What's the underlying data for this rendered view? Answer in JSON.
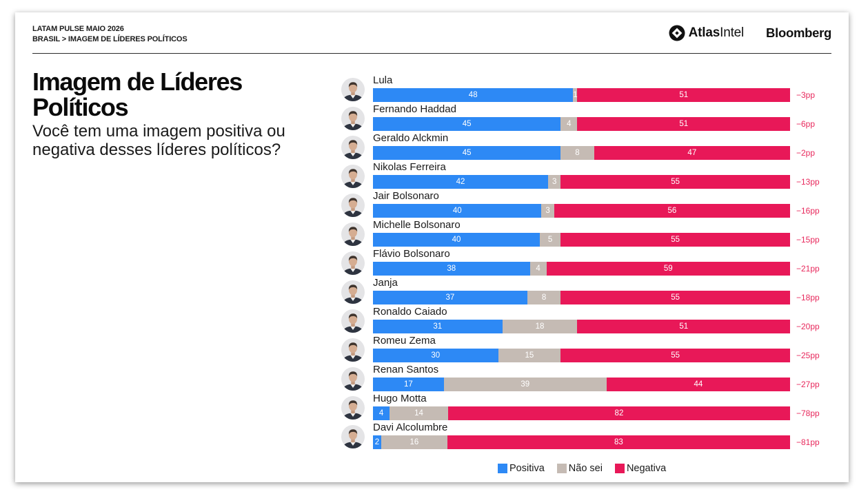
{
  "header": {
    "series_label": "LATAM PULSE MAIO 2026",
    "breadcrumb": "BRASIL > IMAGEM DE LÍDERES POLÍTICOS"
  },
  "logos": {
    "atlasintel_bold": "Atlas",
    "atlasintel_regular": "Intel",
    "bloomberg": "Bloomberg"
  },
  "icons": {
    "atlasintel": "atlasintel-compass-icon",
    "row_avatar": "portrait-photo-icon"
  },
  "colors": {
    "net_label": "#e8285c",
    "text": "#1a1a1a"
  },
  "chart_data": {
    "type": "bar",
    "orientation": "horizontal",
    "stacked": true,
    "title": "Imagem de Líderes Políticos",
    "subtitle": "Você tem uma imagem positiva ou negativa desses líderes políticos?",
    "xlim": [
      0,
      100
    ],
    "grid": false,
    "legend_position": "bottom",
    "categories": [
      "Lula",
      "Fernando Haddad",
      "Geraldo Alckmin",
      "Nikolas Ferreira",
      "Jair Bolsonaro",
      "Michelle Bolsonaro",
      "Flávio Bolsonaro",
      "Janja",
      "Ronaldo Caiado",
      "Romeu Zema",
      "Renan Santos",
      "Hugo Motta",
      "Davi Alcolumbre"
    ],
    "series": [
      {
        "name": "Positiva",
        "color": "#2d89f5",
        "values": [
          48,
          45,
          45,
          42,
          40,
          40,
          38,
          37,
          31,
          30,
          17,
          4,
          2
        ]
      },
      {
        "name": "Não sei",
        "color": "#c5bbb4",
        "values": [
          1,
          4,
          8,
          3,
          3,
          5,
          4,
          8,
          18,
          15,
          39,
          14,
          16
        ]
      },
      {
        "name": "Negativa",
        "color": "#e81858",
        "values": [
          51,
          51,
          47,
          55,
          56,
          55,
          59,
          55,
          51,
          55,
          44,
          82,
          83
        ]
      }
    ],
    "net_labels": [
      "−3pp",
      "−6pp",
      "−2pp",
      "−13pp",
      "−16pp",
      "−15pp",
      "−21pp",
      "−18pp",
      "−20pp",
      "−25pp",
      "−27pp",
      "−78pp",
      "−81pp"
    ]
  }
}
